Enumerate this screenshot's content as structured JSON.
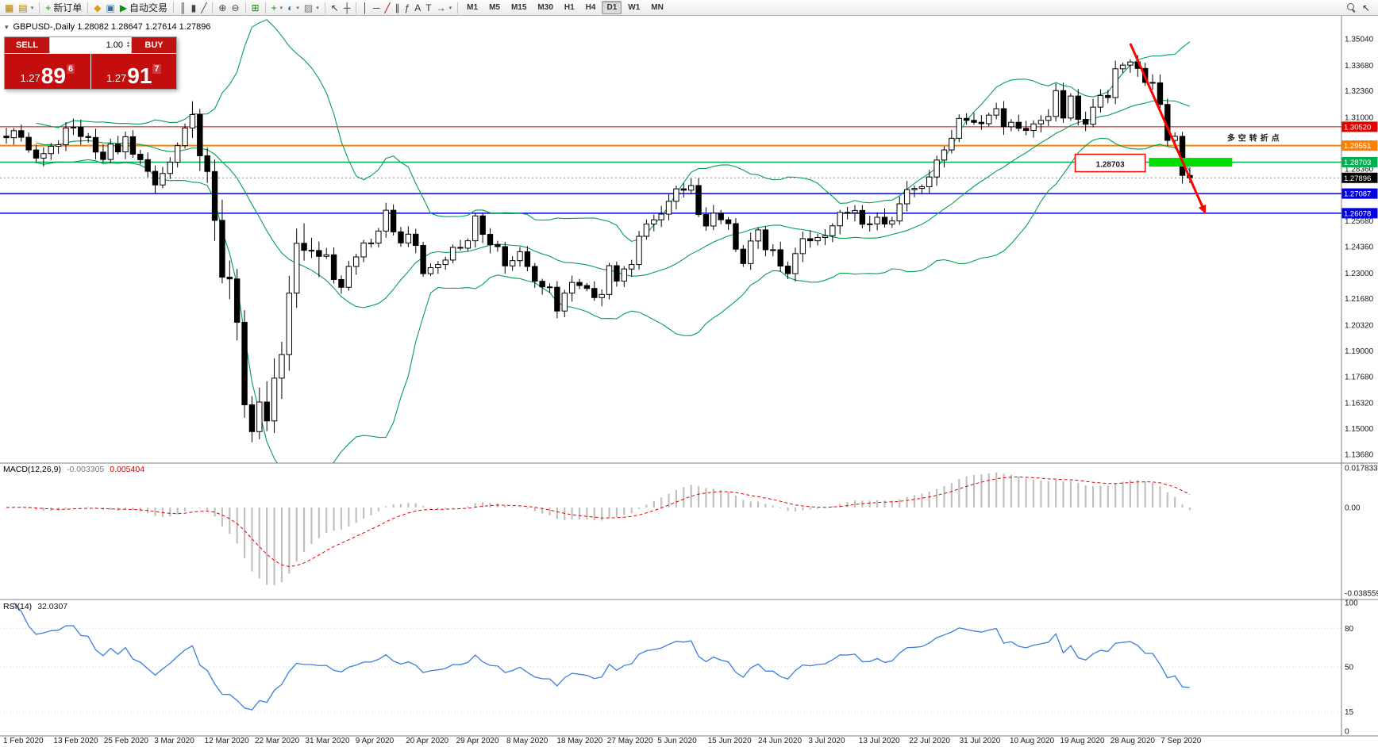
{
  "chart_header": {
    "text": "GBPUSD-,Daily 1.28082 1.28647 1.27614 1.27896"
  },
  "one_click": {
    "sell_label": "SELL",
    "buy_label": "BUY",
    "volume": "1.00",
    "bid": {
      "prefix": "1.27",
      "big": "89",
      "sup": "6"
    },
    "ask": {
      "prefix": "1.27",
      "big": "91",
      "sup": "7"
    }
  },
  "toolbar": {
    "groups": [
      {
        "items": [
          {
            "n": "new-chart-icon",
            "g": "▦",
            "c": "#b07c00"
          },
          {
            "n": "chart-profiles-icon",
            "g": "▤",
            "c": "#b07c00",
            "dd": true
          }
        ]
      },
      {
        "items": [
          {
            "n": "new-order-button",
            "g": "+",
            "c": "#0a8f0a",
            "label": "新订单"
          }
        ]
      },
      {
        "items": [
          {
            "n": "metaeditor-icon",
            "g": "◆",
            "c": "#d4a017"
          },
          {
            "n": "terminal-icon",
            "g": "▣",
            "c": "#3a6ea5"
          },
          {
            "n": "autotrading-button",
            "g": "▶",
            "c": "#0a8f0a",
            "label": "自动交易"
          }
        ]
      },
      {
        "items": [
          {
            "n": "bar-chart-type-icon",
            "g": "║",
            "c": "#444444"
          },
          {
            "n": "candlestick-chart-type-icon",
            "g": "▮",
            "c": "#444444"
          },
          {
            "n": "line-chart-type-icon",
            "g": "╱",
            "c": "#444444"
          }
        ]
      },
      {
        "items": [
          {
            "n": "zoom-in-icon",
            "g": "⊕",
            "c": "#444444"
          },
          {
            "n": "zoom-out-icon",
            "g": "⊖",
            "c": "#444444"
          }
        ]
      },
      {
        "items": [
          {
            "n": "tile-windows-icon",
            "g": "⊞",
            "c": "#0a8f0a"
          }
        ]
      },
      {
        "items": [
          {
            "n": "indicators-icon",
            "g": "+",
            "c": "#0a8f0a",
            "dd": true
          },
          {
            "n": "periods-icon",
            "g": "◐",
            "c": "#3a6ea5",
            "dd": true
          },
          {
            "n": "templates-icon",
            "g": "▨",
            "c": "#777777",
            "dd": true
          }
        ]
      },
      {
        "items": [
          {
            "n": "cursor-icon",
            "g": "↖",
            "c": "#333333"
          },
          {
            "n": "crosshair-icon",
            "g": "┼",
            "c": "#333333"
          }
        ]
      },
      {
        "items": [
          {
            "n": "vertical-line-icon",
            "g": "│",
            "c": "#333333"
          },
          {
            "n": "horizontal-line-icon",
            "g": "─",
            "c": "#333333"
          },
          {
            "n": "trendline-icon",
            "g": "╱",
            "c": "#c00000"
          },
          {
            "n": "equidistant-channel-icon",
            "g": "∥",
            "c": "#333333"
          },
          {
            "n": "fibonacci-icon",
            "g": "ƒ",
            "c": "#333333"
          },
          {
            "n": "text-icon",
            "g": "A",
            "c": "#333333"
          },
          {
            "n": "text-label-icon",
            "g": "T",
            "c": "#333333"
          },
          {
            "n": "arrows-icon",
            "g": "→",
            "c": "#333333",
            "dd": true
          }
        ]
      }
    ],
    "timeframes": [
      "M1",
      "M5",
      "M15",
      "M30",
      "H1",
      "H4",
      "D1",
      "W1",
      "MN"
    ],
    "active_timeframe": "D1",
    "right_items": [
      {
        "n": "search-icon",
        "shape": "magnifier"
      },
      {
        "n": "quick-nav-icon",
        "g": "↖",
        "c": "#333333"
      }
    ]
  },
  "chart_data": [
    {
      "type": "candlestick",
      "symbol": "GBPUSD-",
      "timeframe": "Daily",
      "ohlc_readout": {
        "open": "1.28082",
        "high": "1.28647",
        "low": "1.27614",
        "close": "1.27896"
      },
      "y_range": [
        1.1368,
        1.3504
      ],
      "y_ticks": [
        "1.35040",
        "1.33680",
        "1.32360",
        "1.31000",
        "1.29680",
        "1.28360",
        "1.27040",
        "1.25680",
        "1.24360",
        "1.23000",
        "1.21680",
        "1.20320",
        "1.19000",
        "1.17680",
        "1.16320",
        "1.15000",
        "1.13680"
      ],
      "x_dates": [
        "1 Feb 2020",
        "13 Feb 2020",
        "25 Feb 2020",
        "3 Mar 2020",
        "12 Mar 2020",
        "22 Mar 2020",
        "31 Mar 2020",
        "9 Apr 2020",
        "20 Apr 2020",
        "29 Apr 2020",
        "8 May 2020",
        "18 May 2020",
        "27 May 2020",
        "5 Jun 2020",
        "15 Jun 2020",
        "24 Jun 2020",
        "3 Jul 2020",
        "13 Jul 2020",
        "22 Jul 2020",
        "31 Jul 2020",
        "10 Aug 2020",
        "19 Aug 2020",
        "28 Aug 2020",
        "7 Sep 2020"
      ],
      "closes": [
        1.2996,
        1.3032,
        1.2998,
        1.2933,
        1.2891,
        1.2914,
        1.2952,
        1.296,
        1.3046,
        1.305,
        1.3002,
        1.2997,
        1.2922,
        1.2884,
        1.2963,
        1.2923,
        1.3001,
        1.2911,
        1.2883,
        1.2823,
        1.2753,
        1.2812,
        1.287,
        1.2955,
        1.3046,
        1.3115,
        1.2903,
        1.2822,
        1.2571,
        1.2279,
        1.227,
        1.2047,
        1.1623,
        1.1485,
        1.1637,
        1.154,
        1.176,
        1.1881,
        1.2197,
        1.2453,
        1.2417,
        1.2416,
        1.2386,
        1.2394,
        1.2267,
        1.2227,
        1.2334,
        1.2383,
        1.2455,
        1.2454,
        1.2516,
        1.2623,
        1.2512,
        1.2455,
        1.25,
        1.2442,
        1.2297,
        1.2328,
        1.2344,
        1.2367,
        1.2432,
        1.2428,
        1.2466,
        1.2594,
        1.2499,
        1.2446,
        1.2436,
        1.2337,
        1.2364,
        1.241,
        1.2334,
        1.2258,
        1.2229,
        1.2227,
        1.2105,
        1.2197,
        1.2252,
        1.2236,
        1.2221,
        1.2174,
        1.219,
        1.2338,
        1.2259,
        1.2321,
        1.2344,
        1.2489,
        1.2552,
        1.2574,
        1.2603,
        1.2669,
        1.2733,
        1.2726,
        1.275,
        1.2601,
        1.2542,
        1.2608,
        1.2574,
        1.2554,
        1.2423,
        1.2349,
        1.2465,
        1.2522,
        1.242,
        1.242,
        1.2336,
        1.2297,
        1.24,
        1.2477,
        1.2466,
        1.2483,
        1.2492,
        1.2543,
        1.2612,
        1.261,
        1.2622,
        1.2551,
        1.2553,
        1.2587,
        1.2552,
        1.2568,
        1.2656,
        1.2729,
        1.2735,
        1.2744,
        1.2794,
        1.2881,
        1.2933,
        1.2993,
        1.3095,
        1.3085,
        1.3075,
        1.3068,
        1.3112,
        1.3145,
        1.3052,
        1.3075,
        1.3044,
        1.3033,
        1.3067,
        1.3085,
        1.3105,
        1.3238,
        1.3097,
        1.321,
        1.309,
        1.3065,
        1.3153,
        1.3213,
        1.3202,
        1.335,
        1.3369,
        1.3385,
        1.3352,
        1.328,
        1.3278,
        1.3167,
        1.2982,
        1.3003,
        1.2802,
        1.279
      ],
      "overlays": {
        "bollinger": {
          "period": 20,
          "deviation": 2,
          "color": "#00A050"
        }
      },
      "hlines": [
        {
          "price": 1.3052,
          "label": "1.30520",
          "color": "#e00000",
          "tag_color": "#e00000",
          "width": 1
        },
        {
          "price": 1.29551,
          "label": "1.29551",
          "color": "#ff8000",
          "tag_color": "#ff8000",
          "width": 2
        },
        {
          "price": 1.28703,
          "label": "1.28703",
          "color": "#00b050",
          "tag_color": "#00b050",
          "width": 1.5
        },
        {
          "price": 1.27087,
          "label": "1.27087",
          "color": "#0000e0",
          "tag_color": "#0000e0",
          "width": 1.5
        },
        {
          "price": 1.26078,
          "label": "1.26078",
          "color": "#0000e0",
          "tag_color": "#0000e0",
          "width": 1.5
        }
      ],
      "current_price": {
        "value": 1.27896,
        "label": "1.27896",
        "tag_color": "#000000"
      },
      "annotations": {
        "trend_arrow": {
          "from_index": 151,
          "from_price": 1.348,
          "to_index": 161,
          "to_price": 1.2615,
          "color": "#ff0000",
          "width": 3
        },
        "support_zone": {
          "from_index": 153.5,
          "to_index": 164.7,
          "price": 1.287,
          "thickness": 11,
          "color": "#00dd00"
        },
        "price_callout": {
          "text": "1.28703",
          "from_index": 143.6,
          "to_index": 153.0,
          "center_price": 1.2866,
          "color": "#ff0000"
        },
        "note_text": {
          "text": "多空转折点",
          "index": 164,
          "price": 1.3,
          "color": "#00b050"
        }
      }
    },
    {
      "type": "macd",
      "label": "MACD(12,26,9)",
      "readout_main": "-0.003305",
      "readout_signal": "0.005404",
      "params": {
        "fast": 12,
        "slow": 26,
        "signal": 9
      },
      "y_range": [
        -0.038559,
        0.017833
      ],
      "y_ticks": [
        {
          "v": 0.017833,
          "label": "0.017833"
        },
        {
          "v": 0,
          "label": "0.00"
        },
        {
          "v": -0.038559,
          "label": "-0.038559"
        }
      ],
      "colors": {
        "histogram": "#c0c0c0",
        "signal": "#e00000"
      }
    },
    {
      "type": "rsi",
      "label": "RSI(14)",
      "readout": "32.0307",
      "period": 14,
      "color": "#3d7edb",
      "levels": [
        80,
        50,
        15
      ],
      "y_ticks": [
        {
          "v": 100,
          "label": "100"
        },
        {
          "v": 80,
          "label": "80"
        },
        {
          "v": 50,
          "label": "50"
        },
        {
          "v": 15,
          "label": "15"
        },
        {
          "v": 0,
          "label": "0"
        }
      ]
    }
  ]
}
